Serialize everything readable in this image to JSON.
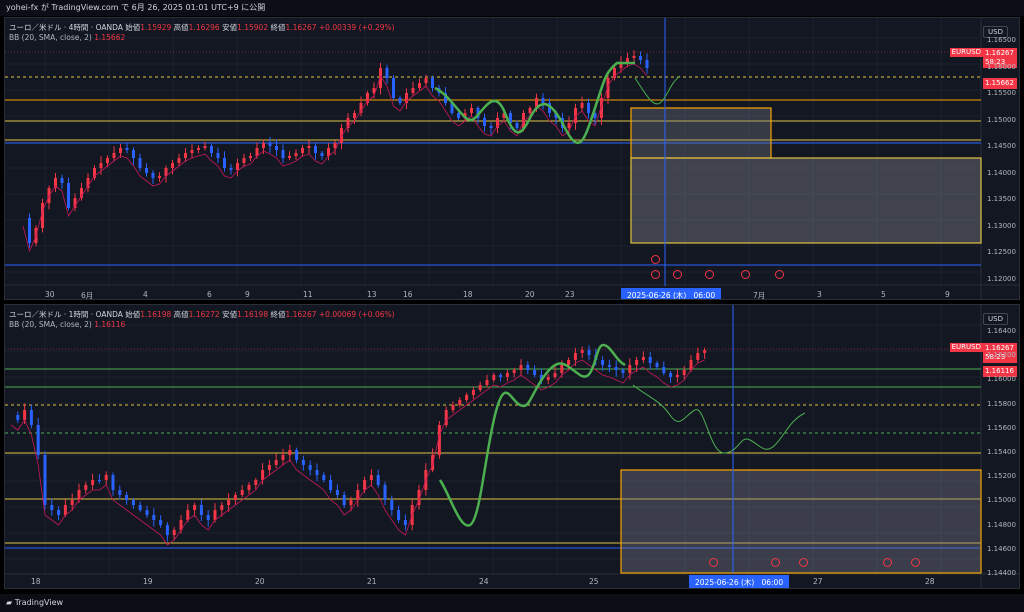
{
  "header": {
    "text": "yohei-fx が TradingView.com で 6月 26, 2025 01:01 UTC+9 に公開"
  },
  "top": {
    "title": "ユーロ／米ドル · 4時間 · OANDA",
    "o_lbl": "始値",
    "o": "1.15929",
    "h_lbl": "高値",
    "h": "1.16296",
    "l_lbl": "安値",
    "l": "1.15902",
    "c_lbl": "終値",
    "c": "1.16267",
    "chg": "+0.00339 (+0.29%)",
    "bb_label": "BB (20, SMA, close, 2)",
    "bb_val": "1.15662",
    "currency": "USD",
    "symbol": "EURUSD",
    "last": "1.16267",
    "countdown": "58:23",
    "basis": "1.15662",
    "y_ticks": [
      "1.16500",
      "1.16000",
      "1.15500",
      "1.15000",
      "1.14500",
      "1.14000",
      "1.13500",
      "1.13000",
      "1.12500",
      "1.12000"
    ],
    "x_ticks": [
      "30",
      "6月",
      "4",
      "6",
      "9",
      "11",
      "13",
      "16",
      "18",
      "20",
      "23",
      "7月",
      "3",
      "5",
      "9"
    ],
    "cursor_date": "2025-06-26 (木)",
    "cursor_time": "06:00"
  },
  "bottom": {
    "title": "ユーロ／米ドル · 1時間 · OANDA",
    "o_lbl": "始値",
    "o": "1.16198",
    "h_lbl": "高値",
    "h": "1.16272",
    "l_lbl": "安値",
    "l": "1.16198",
    "c_lbl": "終値",
    "c": "1.16267",
    "chg": "+0.00069 (+0.06%)",
    "bb_label": "BB (20, SMA, close, 2)",
    "bb_val": "1.16116",
    "currency": "USD",
    "symbol": "EURUSD",
    "last": "1.16267",
    "countdown": "58:23",
    "basis": "1.16116",
    "y_ticks": [
      "1.16400",
      "1.16200",
      "1.16000",
      "1.15800",
      "1.15600",
      "1.15400",
      "1.15200",
      "1.15000",
      "1.14800",
      "1.14600",
      "1.14400"
    ],
    "x_ticks": [
      "18",
      "19",
      "20",
      "21",
      "24",
      "25",
      "27",
      "28"
    ],
    "cursor_date": "2025-06-26 (木)",
    "cursor_time": "06:00"
  },
  "footer": {
    "brand": "TradingView"
  },
  "colors": {
    "up": "#f23645",
    "down": "#2962ff",
    "bg": "#131722",
    "level": "#e0c341",
    "zone": "#f7a600",
    "forecast": "#4caf50"
  }
}
